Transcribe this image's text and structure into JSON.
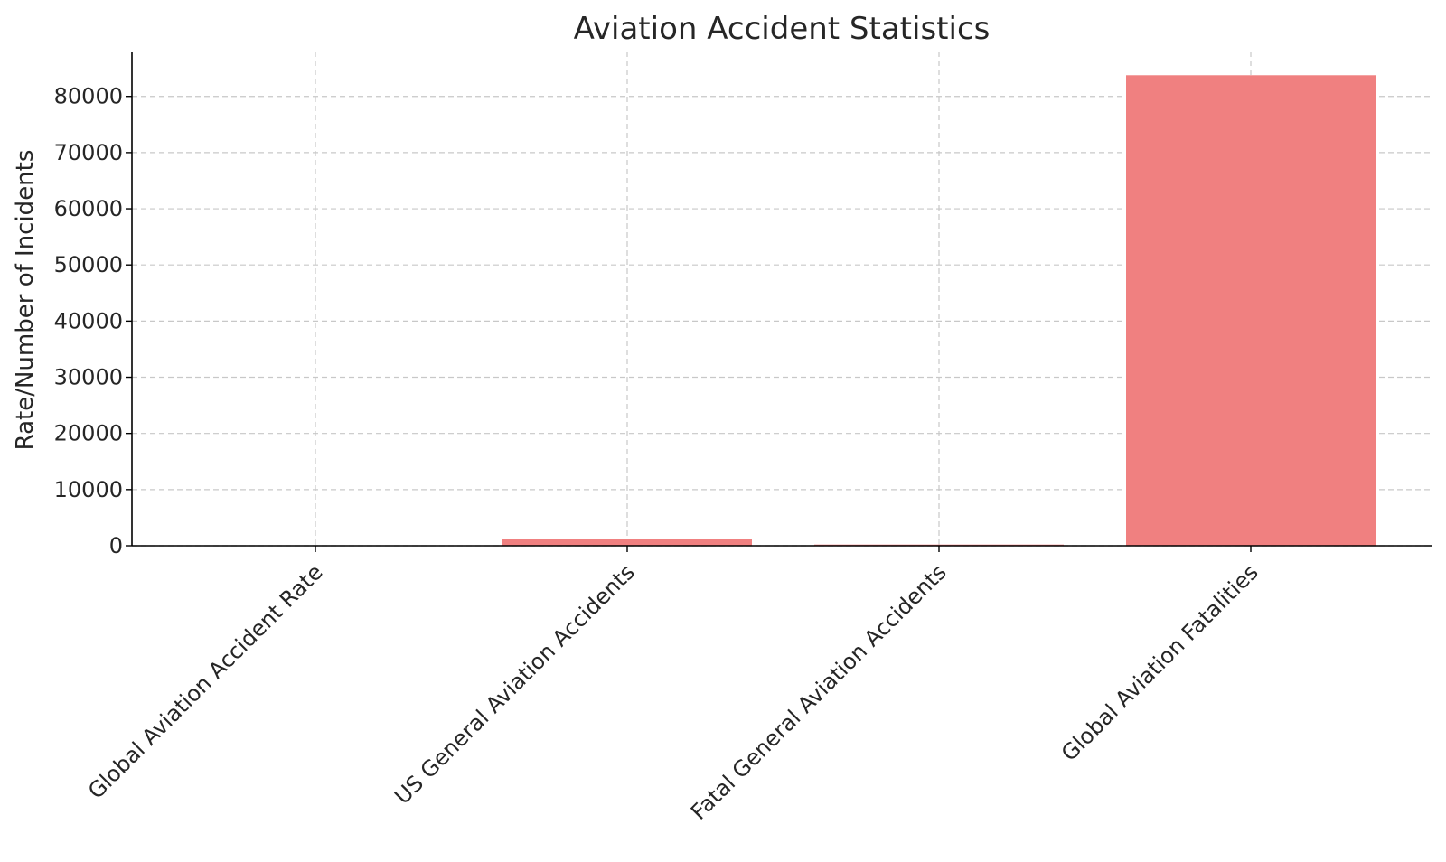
{
  "chart_data": {
    "type": "bar",
    "title": "Aviation Accident Statistics",
    "xlabel": "",
    "ylabel": "Rate/Number of Incidents",
    "categories": [
      "Global Aviation Accident Rate",
      "US General Aviation Accidents",
      "Fatal General Aviation Accidents",
      "Global Aviation Fatalities"
    ],
    "values": [
      1.1,
      1220,
      210,
      83772
    ],
    "ylim": [
      0,
      88000
    ],
    "yticks": [
      0,
      10000,
      20000,
      30000,
      40000,
      50000,
      60000,
      70000,
      80000
    ],
    "grid": true,
    "bar_color": "#f08080",
    "legend": "none"
  }
}
